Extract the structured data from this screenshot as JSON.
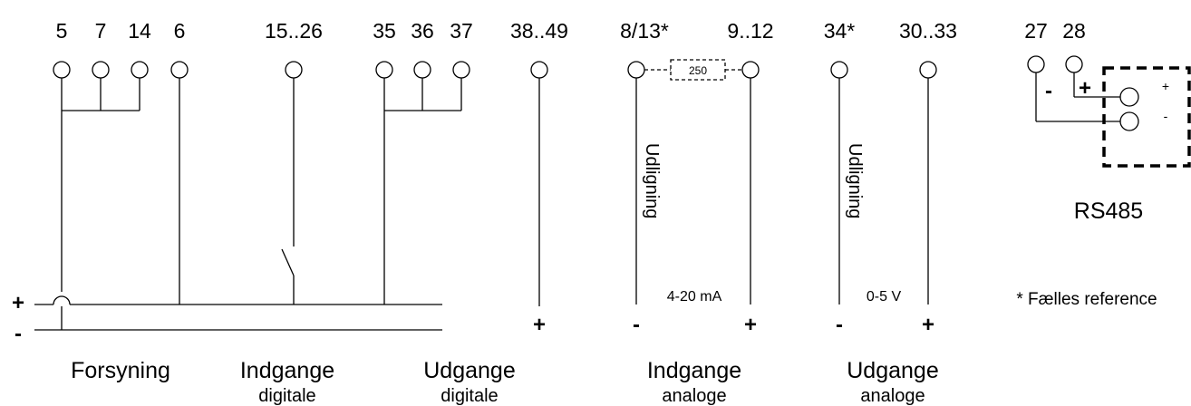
{
  "terminals": {
    "t5": "5",
    "t7": "7",
    "t14": "14",
    "t6": "6",
    "t15_26": "15..26",
    "t35": "35",
    "t36": "36",
    "t37": "37",
    "t38_49": "38..49",
    "t8_13": "8/13*",
    "t9_12": "9..12",
    "t34": "34*",
    "t30_33": "30..33",
    "t27": "27",
    "t28": "28"
  },
  "resistor": {
    "value": "250"
  },
  "vertical_labels": {
    "udligning_in": "Udligning",
    "udligning_out": "Udligning"
  },
  "bus": {
    "plus": "+",
    "minus": "-"
  },
  "signs": {
    "out_digital_plus": "+",
    "in_analog_minus": "-",
    "in_analog_plus": "+",
    "out_analog_minus": "-",
    "out_analog_plus": "+",
    "rs_minus": "-",
    "rs_plus": "+",
    "rs_box_plus": "+",
    "rs_box_minus": "-"
  },
  "ranges": {
    "in_analog": "4-20 mA",
    "out_analog": "0-5 V"
  },
  "rs485": "RS485",
  "note": "* Fælles reference",
  "groups": {
    "forsyning": "Forsyning",
    "indgange_digitale": {
      "title": "Indgange",
      "sub": "digitale"
    },
    "udgange_digitale": {
      "title": "Udgange",
      "sub": "digitale"
    },
    "indgange_analoge": {
      "title": "Indgange",
      "sub": "analoge"
    },
    "udgange_analoge": {
      "title": "Udgange",
      "sub": "analoge"
    }
  }
}
